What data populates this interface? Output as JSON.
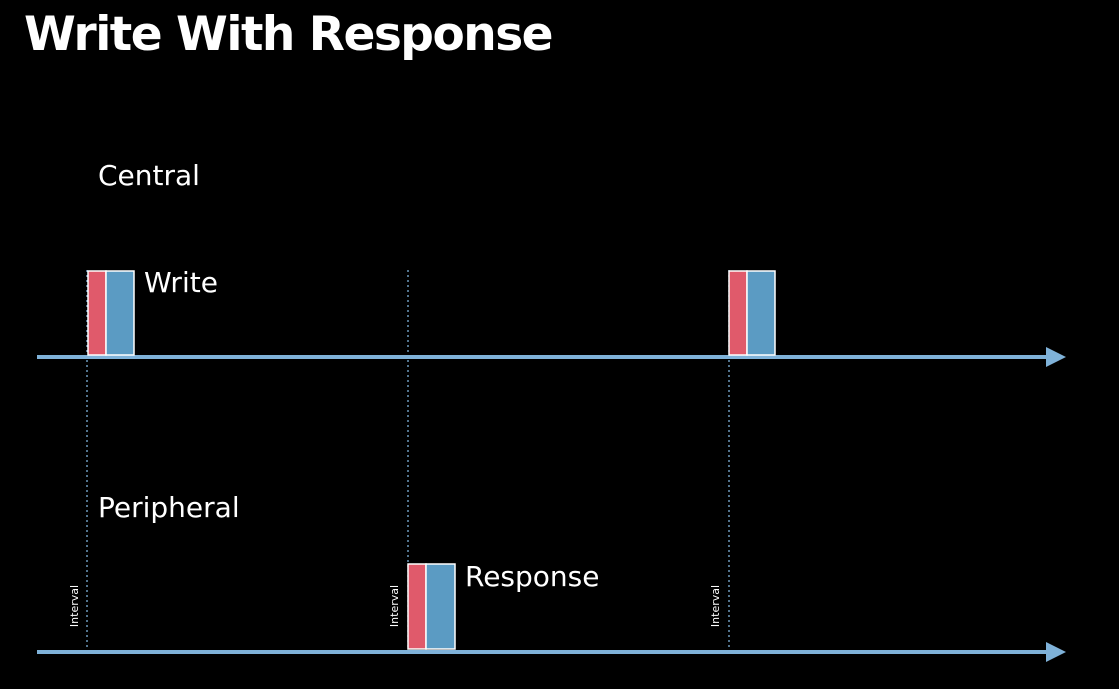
{
  "slide": {
    "title": "Write With Response"
  },
  "diagram": {
    "central_label": "Central",
    "peripheral_label": "Peripheral",
    "write_label": "Write",
    "response_label": "Response",
    "interval_label": "Interval"
  },
  "colors": {
    "background": "#000000",
    "text": "#ffffff",
    "timeline": "#7fb2d9",
    "packet_header": "#e05a6b",
    "packet_body": "#5b9bc3",
    "packet_outline": "#ffffff",
    "interval_line": "#7fb2d9"
  }
}
